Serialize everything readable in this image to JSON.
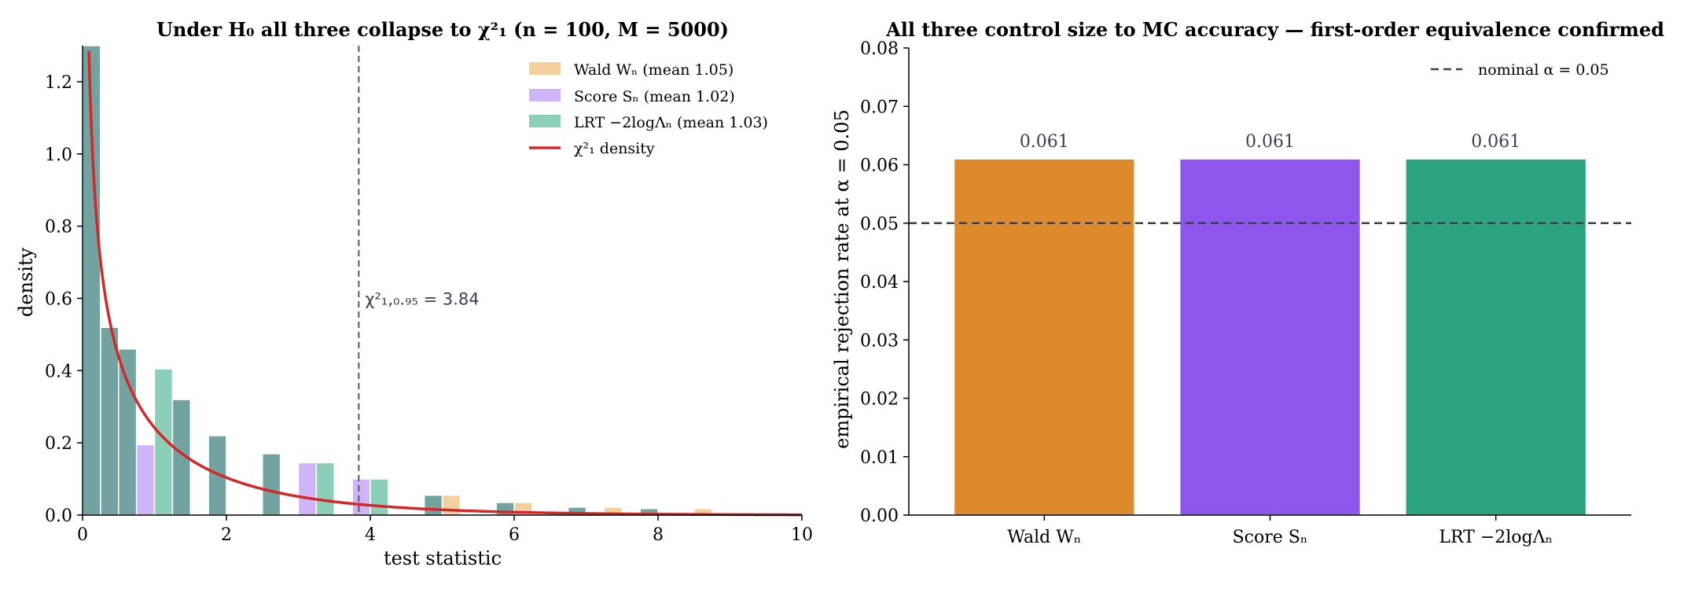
{
  "chart_data": [
    {
      "type": "bar",
      "title": "Under H₀ all three collapse to χ²₁  (n = 100, M = 5000)",
      "xlabel": "test statistic",
      "ylabel": "density",
      "xlim": [
        0,
        10
      ],
      "ylim": [
        0,
        1.3
      ],
      "xticks": [
        "0",
        "2",
        "4",
        "6",
        "8",
        "10"
      ],
      "yticks": [
        "0.0",
        "0.2",
        "0.4",
        "0.6",
        "0.8",
        "1.0",
        "1.2"
      ],
      "legend_position": "top-right",
      "grid": false,
      "bin_width": 0.25,
      "series": [
        {
          "name": "Wald  Wₙ  (mean 1.05)",
          "color": "#e9a94a",
          "x": [
            0.125,
            0.375,
            0.625,
            0.875,
            1.125,
            1.375,
            1.875,
            2.625,
            3.125,
            3.375,
            3.875,
            4.125,
            4.875,
            5.125,
            5.875,
            6.125,
            6.875,
            7.375,
            7.875,
            8.625
          ],
          "y": [
            1.3,
            0.52,
            0.46,
            0.0,
            0.0,
            0.32,
            0.22,
            0.17,
            0.0,
            0.0,
            0.0,
            0.0,
            0.055,
            0.055,
            0.035,
            0.035,
            0.022,
            0.022,
            0.018,
            0.018
          ]
        },
        {
          "name": "Score  Sₙ  (mean 1.02)",
          "color": "#a878f0",
          "x": [
            0.125,
            0.375,
            0.625,
            0.875,
            1.125,
            1.375,
            1.875,
            2.625,
            3.125,
            3.375,
            3.875,
            4.125,
            4.875,
            5.875,
            6.875,
            7.875
          ],
          "y": [
            1.3,
            0.52,
            0.46,
            0.195,
            0.0,
            0.32,
            0.22,
            0.17,
            0.145,
            0.0,
            0.1,
            0.0,
            0.055,
            0.035,
            0.022,
            0.018
          ]
        },
        {
          "name": "LRT  −2logΛₙ  (mean 1.03)",
          "color": "#2ca57f",
          "x": [
            0.125,
            0.375,
            0.625,
            1.125,
            1.375,
            1.875,
            2.625,
            3.375,
            4.125,
            4.875,
            5.875,
            6.875,
            7.875
          ],
          "y": [
            1.3,
            0.52,
            0.46,
            0.405,
            0.32,
            0.22,
            0.17,
            0.145,
            0.1,
            0.055,
            0.035,
            0.022,
            0.018
          ]
        }
      ],
      "density_curve": {
        "name": "χ²₁  density",
        "color": "#d62728"
      },
      "critical_value": {
        "x": 3.84,
        "label": "χ²₁,₀.₉₅ = 3.84",
        "color": "#55576f"
      }
    },
    {
      "type": "bar",
      "title": "All three control size to MC accuracy — first-order equivalence confirmed",
      "xlabel": "",
      "ylabel": "empirical rejection rate at α = 0.05",
      "ylim": [
        0,
        0.08
      ],
      "yticks": [
        "0.00",
        "0.01",
        "0.02",
        "0.03",
        "0.04",
        "0.05",
        "0.06",
        "0.07",
        "0.08"
      ],
      "categories": [
        "Wald Wₙ",
        "Score Sₙ",
        "LRT −2logΛₙ"
      ],
      "values": [
        0.061,
        0.061,
        0.061
      ],
      "value_labels": [
        "0.061",
        "0.061",
        "0.061"
      ],
      "colors": [
        "#dd8a2c",
        "#8f56ee",
        "#2ba47f"
      ],
      "reference_line": {
        "y": 0.05,
        "label": "nominal α = 0.05",
        "color": "#3b4057"
      },
      "legend_position": "top-right",
      "grid": false
    }
  ]
}
